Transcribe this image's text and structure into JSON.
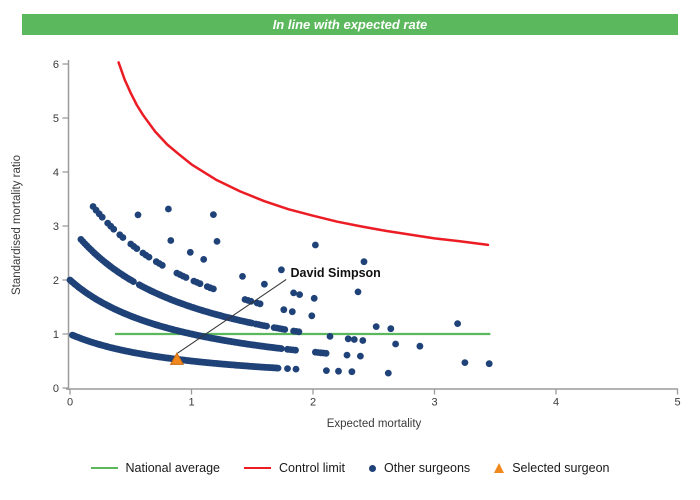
{
  "banner": {
    "text": "In line with expected rate",
    "bg": "#5CB85C",
    "fg": "#FFFFFF"
  },
  "chart_data": {
    "type": "scatter",
    "title": "In line with expected rate",
    "xlabel": "Expected mortality",
    "ylabel": "Standardised mortality ratio",
    "xlim": [
      0,
      5
    ],
    "ylim": [
      0,
      6
    ],
    "xticks": [
      0,
      1,
      2,
      3,
      4,
      5
    ],
    "yticks": [
      0,
      1,
      2,
      3,
      4,
      5,
      6
    ],
    "grid": false,
    "axis_color": "#9B9B9B",
    "tick_text_color": "#3a3a3a",
    "national_average": {
      "y": 1,
      "x_start": 0.37,
      "x_end": 3.46,
      "color": "#5CB85C"
    },
    "control_limit": {
      "color": "#EC1C24",
      "points": [
        [
          0.4,
          6.03
        ],
        [
          0.45,
          5.71
        ],
        [
          0.5,
          5.46
        ],
        [
          0.55,
          5.24
        ],
        [
          0.6,
          5.06
        ],
        [
          0.7,
          4.75
        ],
        [
          0.8,
          4.51
        ],
        [
          0.9,
          4.32
        ],
        [
          1.0,
          4.14
        ],
        [
          1.2,
          3.86
        ],
        [
          1.4,
          3.64
        ],
        [
          1.6,
          3.46
        ],
        [
          1.8,
          3.31
        ],
        [
          2.0,
          3.19
        ],
        [
          2.2,
          3.08
        ],
        [
          2.4,
          2.99
        ],
        [
          2.6,
          2.91
        ],
        [
          2.8,
          2.84
        ],
        [
          3.0,
          2.77
        ],
        [
          3.2,
          2.72
        ],
        [
          3.44,
          2.65
        ]
      ]
    },
    "other_surgeons": {
      "color": "#1F4278",
      "dot_radius": 3.4,
      "band_formula": "smr = deaths / (1 + expected_mortality)",
      "bands": [
        {
          "deaths": 1,
          "solid": [
            [
              0.02,
              1.72
            ]
          ],
          "solid_step": 0.012,
          "dash_segments": [],
          "dash_step": 0.022,
          "singles": [
            1.79,
            1.86,
            2.11,
            2.21,
            2.32,
            2.62
          ]
        },
        {
          "deaths": 2,
          "solid": [
            [
              0.0,
              1.74
            ]
          ],
          "solid_step": 0.012,
          "dash_segments": [
            [
              1.79,
              1.86
            ],
            [
              2.02,
              2.12
            ]
          ],
          "dash_step": 0.022,
          "singles": [
            2.28,
            2.39,
            3.25,
            3.45
          ]
        },
        {
          "deaths": 3,
          "solid": [
            [
              0.09,
              0.53
            ],
            [
              0.57,
              1.5
            ]
          ],
          "solid_step": 0.016,
          "dash_segments": [
            [
              1.53,
              1.62
            ],
            [
              1.68,
              1.78
            ],
            [
              1.84,
              1.9
            ]
          ],
          "dash_step": 0.022,
          "singles": [
            2.14,
            2.29,
            2.34,
            2.41,
            2.68,
            2.88
          ]
        },
        {
          "deaths": 4,
          "solid": [],
          "solid_step": 0.025,
          "dash_segments": [
            [
              0.19,
              0.28
            ],
            [
              0.31,
              0.36
            ],
            [
              0.41,
              0.45
            ],
            [
              0.5,
              0.55
            ],
            [
              0.6,
              0.66
            ],
            [
              0.71,
              0.77
            ],
            [
              0.88,
              0.97
            ],
            [
              1.02,
              1.08
            ],
            [
              1.13,
              1.19
            ],
            [
              1.44,
              1.5
            ],
            [
              1.54,
              1.58
            ]
          ],
          "dash_step": 0.025,
          "singles": [
            1.76,
            1.83,
            1.99,
            2.52,
            2.64
          ]
        },
        {
          "deaths": 5,
          "solid": [],
          "solid_step": 0.025,
          "dash_segments": [],
          "dash_step": 0.025,
          "singles": [
            0.56,
            0.83,
            0.99,
            1.1,
            1.42,
            1.6,
            1.84,
            1.89,
            2.01,
            3.19
          ]
        },
        {
          "deaths": 6,
          "solid": [],
          "solid_step": 0.025,
          "dash_segments": [],
          "dash_step": 0.025,
          "singles": [
            0.81,
            1.21,
            1.74,
            2.37
          ]
        },
        {
          "deaths": 7,
          "solid": [],
          "solid_step": 0.025,
          "dash_segments": [],
          "dash_step": 0.025,
          "singles": [
            1.18
          ]
        },
        {
          "deaths": 8,
          "solid": [],
          "solid_step": 0.025,
          "dash_segments": [],
          "dash_step": 0.025,
          "singles": [
            2.02,
            2.42
          ]
        }
      ]
    },
    "selected_surgeon": {
      "name": "David Simpson",
      "x": 0.88,
      "y": 0.53,
      "color": "#F0881E",
      "edge_color": "#C96A10"
    },
    "annotation": {
      "text": "David Simpson",
      "x": 1.815,
      "y": 2.06,
      "line": [
        [
          0.885,
          0.645
        ],
        [
          1.78,
          2.01
        ]
      ],
      "line_color": "#333333"
    }
  },
  "legend": {
    "items": [
      {
        "label": "National average",
        "marker": "line",
        "color": "#5CB85C"
      },
      {
        "label": "Control limit",
        "marker": "line",
        "color": "#EC1C24"
      },
      {
        "label": "Other surgeons",
        "marker": "dot",
        "color": "#1F4278"
      },
      {
        "label": "Selected surgeon",
        "marker": "triangle",
        "color": "#F0881E"
      }
    ]
  }
}
